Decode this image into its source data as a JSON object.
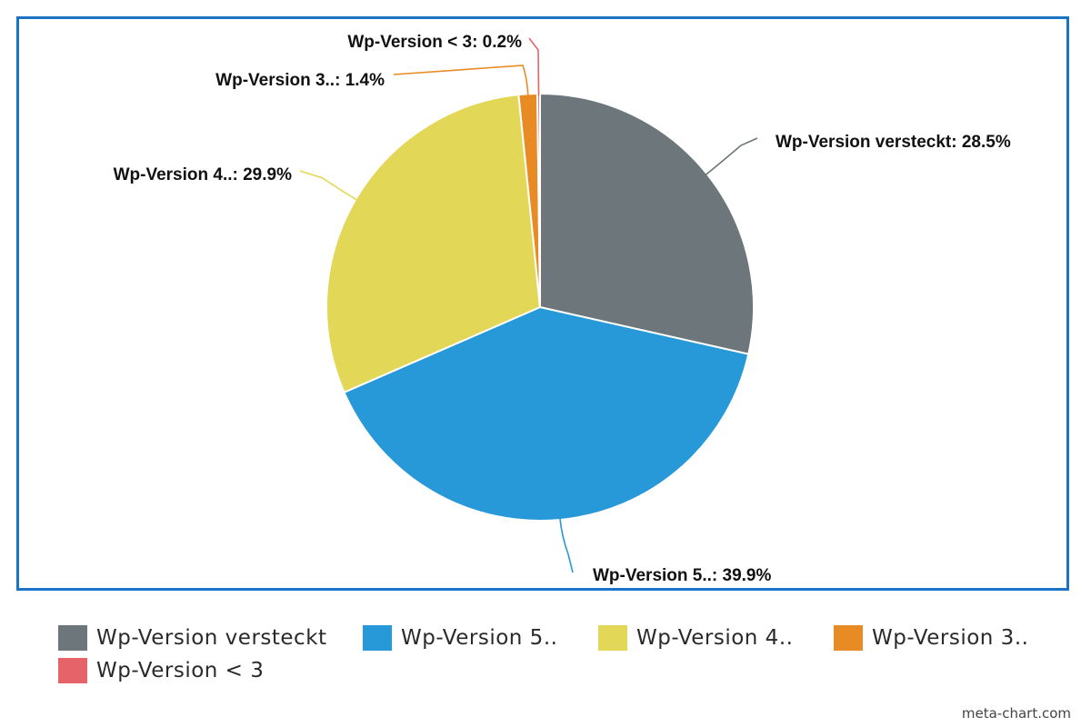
{
  "chart_data": {
    "type": "pie",
    "title": "",
    "slices": [
      {
        "name": "Wp-Version versteckt",
        "value": 28.5,
        "label": "Wp-Version versteckt: 28.5%",
        "color": "#6d777b"
      },
      {
        "name": "Wp-Version 5..",
        "value": 39.9,
        "label": "Wp-Version 5..: 39.9%",
        "color": "#2899d8"
      },
      {
        "name": "Wp-Version 4..",
        "value": 29.9,
        "label": "Wp-Version 4..: 29.9%",
        "color": "#e2d756"
      },
      {
        "name": "Wp-Version 3..",
        "value": 1.4,
        "label": "Wp-Version 3..: 1.4%",
        "color": "#e98b24"
      },
      {
        "name": "Wp-Version < 3",
        "value": 0.2,
        "label": "Wp-Version < 3: 0.2%",
        "color": "#e6636a"
      }
    ],
    "start_angle": "12 o'clock",
    "direction": "clockwise",
    "legend_position": "bottom"
  },
  "legend": {
    "items": [
      {
        "label": "Wp-Version versteckt",
        "color": "#6d777b"
      },
      {
        "label": "Wp-Version 5..",
        "color": "#2899d8"
      },
      {
        "label": "Wp-Version 4..",
        "color": "#e2d756"
      },
      {
        "label": "Wp-Version 3..",
        "color": "#e98b24"
      },
      {
        "label": "Wp-Version < 3",
        "color": "#e6636a"
      }
    ]
  },
  "frame_color": "#1a73c5",
  "watermark": "meta-chart.com"
}
